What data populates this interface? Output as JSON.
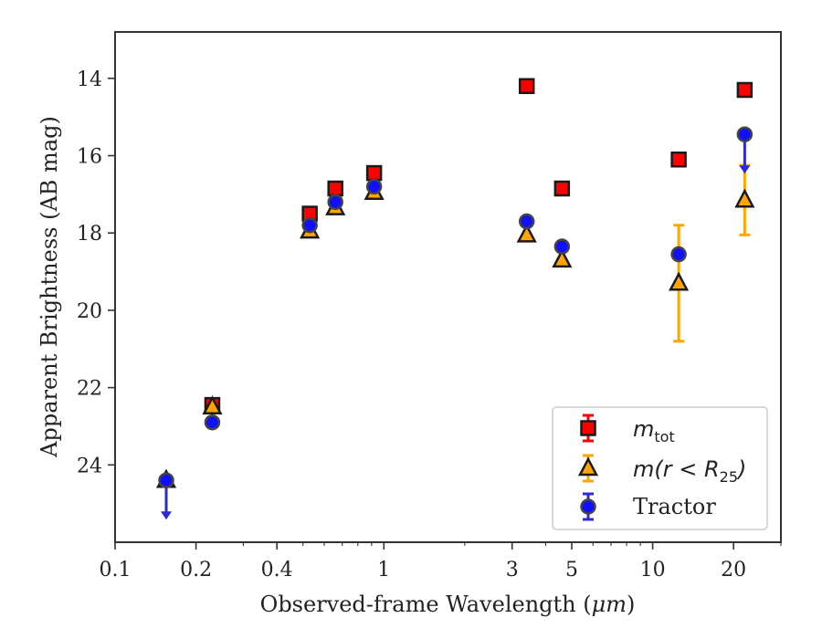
{
  "chart_data": {
    "type": "scatter",
    "xlabel_prefix": "Observed-frame Wavelength (",
    "xlabel_unit": "μm",
    "xlabel_suffix": ")",
    "ylabel": "Apparent Brightness (AB mag)",
    "x_scale": "log",
    "xlim": [
      0.1,
      30
    ],
    "ylim": [
      26.0,
      12.8
    ],
    "y_inverted": true,
    "x_ticks": [
      0.1,
      0.2,
      0.4,
      1,
      3,
      5,
      10,
      20
    ],
    "x_tick_labels": [
      "0.1",
      "0.2",
      "0.4",
      "1",
      "3",
      "5",
      "10",
      "20"
    ],
    "y_ticks": [
      14,
      16,
      18,
      20,
      22,
      24
    ],
    "y_tick_labels": [
      "14",
      "16",
      "18",
      "20",
      "22",
      "24"
    ],
    "legend_position": "lower-right",
    "series": [
      {
        "name_main": "m",
        "name_sub": "tot",
        "marker": "square",
        "color": "#ff0000",
        "edge": "#1a1a1a",
        "points": [
          {
            "x": 0.23,
            "y": 22.45
          },
          {
            "x": 0.53,
            "y": 17.5
          },
          {
            "x": 0.66,
            "y": 16.85
          },
          {
            "x": 0.92,
            "y": 16.45
          },
          {
            "x": 3.4,
            "y": 14.2
          },
          {
            "x": 4.6,
            "y": 16.85
          },
          {
            "x": 12.5,
            "y": 16.1
          },
          {
            "x": 22.0,
            "y": 14.3
          }
        ]
      },
      {
        "name_main": "m(r < R",
        "name_sub": "25",
        "name_close": ")",
        "marker": "triangle",
        "color": "#ffa500",
        "edge": "#1a1a1a",
        "points": [
          {
            "x": 0.155,
            "y": 24.4
          },
          {
            "x": 0.23,
            "y": 22.5
          },
          {
            "x": 0.53,
            "y": 17.95
          },
          {
            "x": 0.66,
            "y": 17.35
          },
          {
            "x": 0.92,
            "y": 16.95
          },
          {
            "x": 3.4,
            "y": 18.05
          },
          {
            "x": 4.6,
            "y": 18.7
          },
          {
            "x": 12.5,
            "y": 19.3,
            "err": 1.5
          },
          {
            "x": 22.0,
            "y": 17.15,
            "err": 0.9
          }
        ]
      },
      {
        "name": "Tractor",
        "marker": "circle",
        "color": "#1010ff",
        "edge": "#444444",
        "points": [
          {
            "x": 0.155,
            "y": 24.4,
            "upper_limit": true
          },
          {
            "x": 0.23,
            "y": 22.9
          },
          {
            "x": 0.53,
            "y": 17.8
          },
          {
            "x": 0.66,
            "y": 17.2
          },
          {
            "x": 0.92,
            "y": 16.8
          },
          {
            "x": 3.4,
            "y": 17.7
          },
          {
            "x": 4.6,
            "y": 18.35
          },
          {
            "x": 12.5,
            "y": 18.55
          },
          {
            "x": 22.0,
            "y": 15.45,
            "upper_limit": true
          }
        ]
      }
    ]
  }
}
